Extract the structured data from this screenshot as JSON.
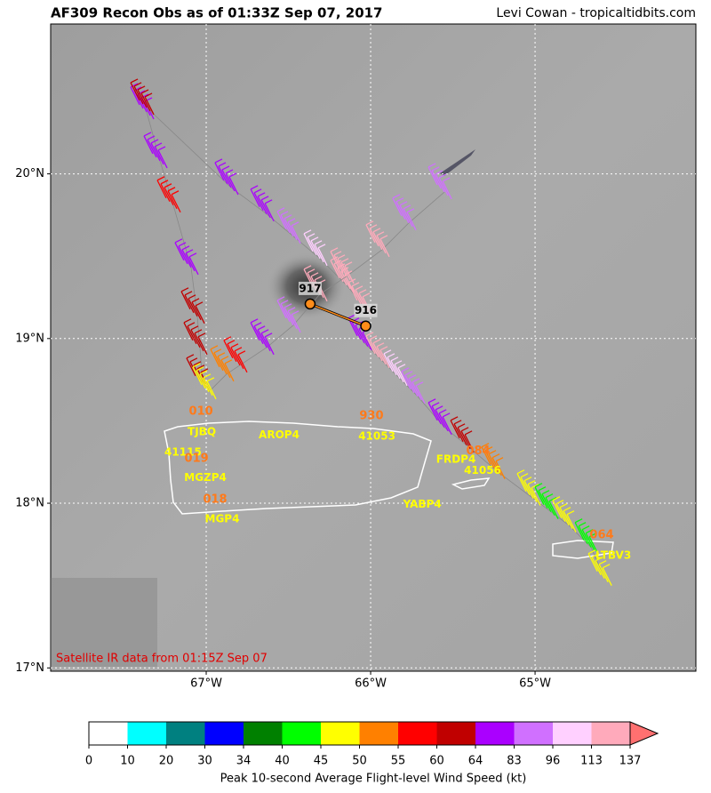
{
  "header": {
    "title": "AF309 Recon Obs as of 01:33Z Sep 07, 2017",
    "credit": "Levi Cowan - tropicaltidbits.com"
  },
  "map": {
    "lonlim": [
      -67.946,
      -64.022
    ],
    "latlim": [
      16.98,
      20.91
    ],
    "lonticks": [
      {
        "value": -67,
        "label": "67°W"
      },
      {
        "value": -66,
        "label": "66°W"
      },
      {
        "value": -65,
        "label": "65°W"
      }
    ],
    "latticks": [
      {
        "value": 17,
        "label": "17°N"
      },
      {
        "value": 18,
        "label": "18°N"
      },
      {
        "value": 19,
        "label": "19°N"
      },
      {
        "value": 20,
        "label": "20°N"
      }
    ],
    "grid": true,
    "note": "Satellite IR data from 01:15Z Sep 07",
    "center_fixes": [
      {
        "label": "917",
        "lon": -66.368,
        "lat": 19.21
      },
      {
        "label": "916",
        "lon": -66.03,
        "lat": 19.076
      }
    ],
    "stations": [
      {
        "label": "TJBQ",
        "lon": -67.027,
        "lat": 18.433
      },
      {
        "label": "AROP4",
        "lon": -66.557,
        "lat": 18.412
      },
      {
        "label": "41053",
        "lon": -65.962,
        "lat": 18.406
      },
      {
        "label": "41115",
        "lon": -67.141,
        "lat": 18.309
      },
      {
        "label": "MGZP4",
        "lon": -67.005,
        "lat": 18.153
      },
      {
        "label": "MGP4",
        "lon": -66.903,
        "lat": 17.904
      },
      {
        "label": "FRDP4",
        "lon": -65.481,
        "lat": 18.266
      },
      {
        "label": "41056",
        "lon": -65.319,
        "lat": 18.196
      },
      {
        "label": "YABP4",
        "lon": -65.686,
        "lat": 17.991
      },
      {
        "label": "LTBV3",
        "lon": -64.524,
        "lat": 17.683
      }
    ],
    "pressure_labels": [
      {
        "label": "010",
        "lon": -67.032,
        "lat": 18.557
      },
      {
        "label": "930",
        "lon": -65.995,
        "lat": 18.53
      },
      {
        "label": "019",
        "lon": -67.059,
        "lat": 18.271
      },
      {
        "label": "018",
        "lon": -66.946,
        "lat": 18.023
      },
      {
        "label": "084",
        "lon": -65.346,
        "lat": 18.315
      },
      {
        "label": "064",
        "lon": -64.595,
        "lat": 17.807
      }
    ],
    "flight_legs": [
      {
        "lon": [
          -67.022,
          -67.038,
          -67.054,
          -67.092,
          -67.2,
          -67.281,
          -67.362
        ],
        "lat": [
          18.73,
          18.946,
          19.135,
          19.432,
          19.81,
          20.079,
          20.376
        ],
        "speed": [
          60,
          60,
          63,
          72,
          58,
          72,
          75
        ]
      },
      {
        "lon": [
          -67.362,
          -66.849,
          -66.632,
          -66.47,
          -66.308,
          -66.146,
          -66.038
        ],
        "lat": [
          20.403,
          19.917,
          19.756,
          19.621,
          19.486,
          19.324,
          19.189
        ],
        "speed": [
          60,
          75,
          80,
          90,
          100,
          120,
          125
        ]
      },
      {
        "lon": [
          -66.984,
          -66.876,
          -66.795,
          -66.632,
          -66.47,
          -66.308,
          -66.146,
          -65.93,
          -65.768,
          -65.551
        ],
        "lat": [
          18.676,
          18.784,
          18.838,
          18.946,
          19.081,
          19.27,
          19.378,
          19.54,
          19.702,
          19.89
        ],
        "speed": [
          47,
          52,
          57,
          75,
          88,
          115,
          120,
          118,
          90,
          85
        ]
      },
      {
        "lon": [
          -66.038,
          -65.93,
          -65.822,
          -65.714,
          -65.551,
          -65.416,
          -65.227,
          -65.011,
          -64.903,
          -64.795,
          -64.659,
          -64.578
        ],
        "lat": [
          18.973,
          18.865,
          18.757,
          18.649,
          18.46,
          18.352,
          18.191,
          18.029,
          17.948,
          17.867,
          17.732,
          17.543
        ],
        "speed": [
          70,
          115,
          100,
          88,
          75,
          60,
          52,
          47,
          42,
          47,
          42,
          47
        ]
      }
    ]
  },
  "colorbar": {
    "boundaries": [
      0,
      10,
      20,
      30,
      34,
      40,
      45,
      50,
      55,
      60,
      64,
      83,
      96,
      113,
      137
    ],
    "colors": [
      "#ffffff",
      "#00ffff",
      "#008080",
      "#0000ff",
      "#008000",
      "#00ff00",
      "#ffff00",
      "#ff8000",
      "#ff0000",
      "#c00000",
      "#aa00ff",
      "#d070ff",
      "#ffd0ff",
      "#ffaabb"
    ],
    "over_color": "#ff7070",
    "label": "Peak 10-second Average Flight-level Wind Speed (kt)"
  }
}
